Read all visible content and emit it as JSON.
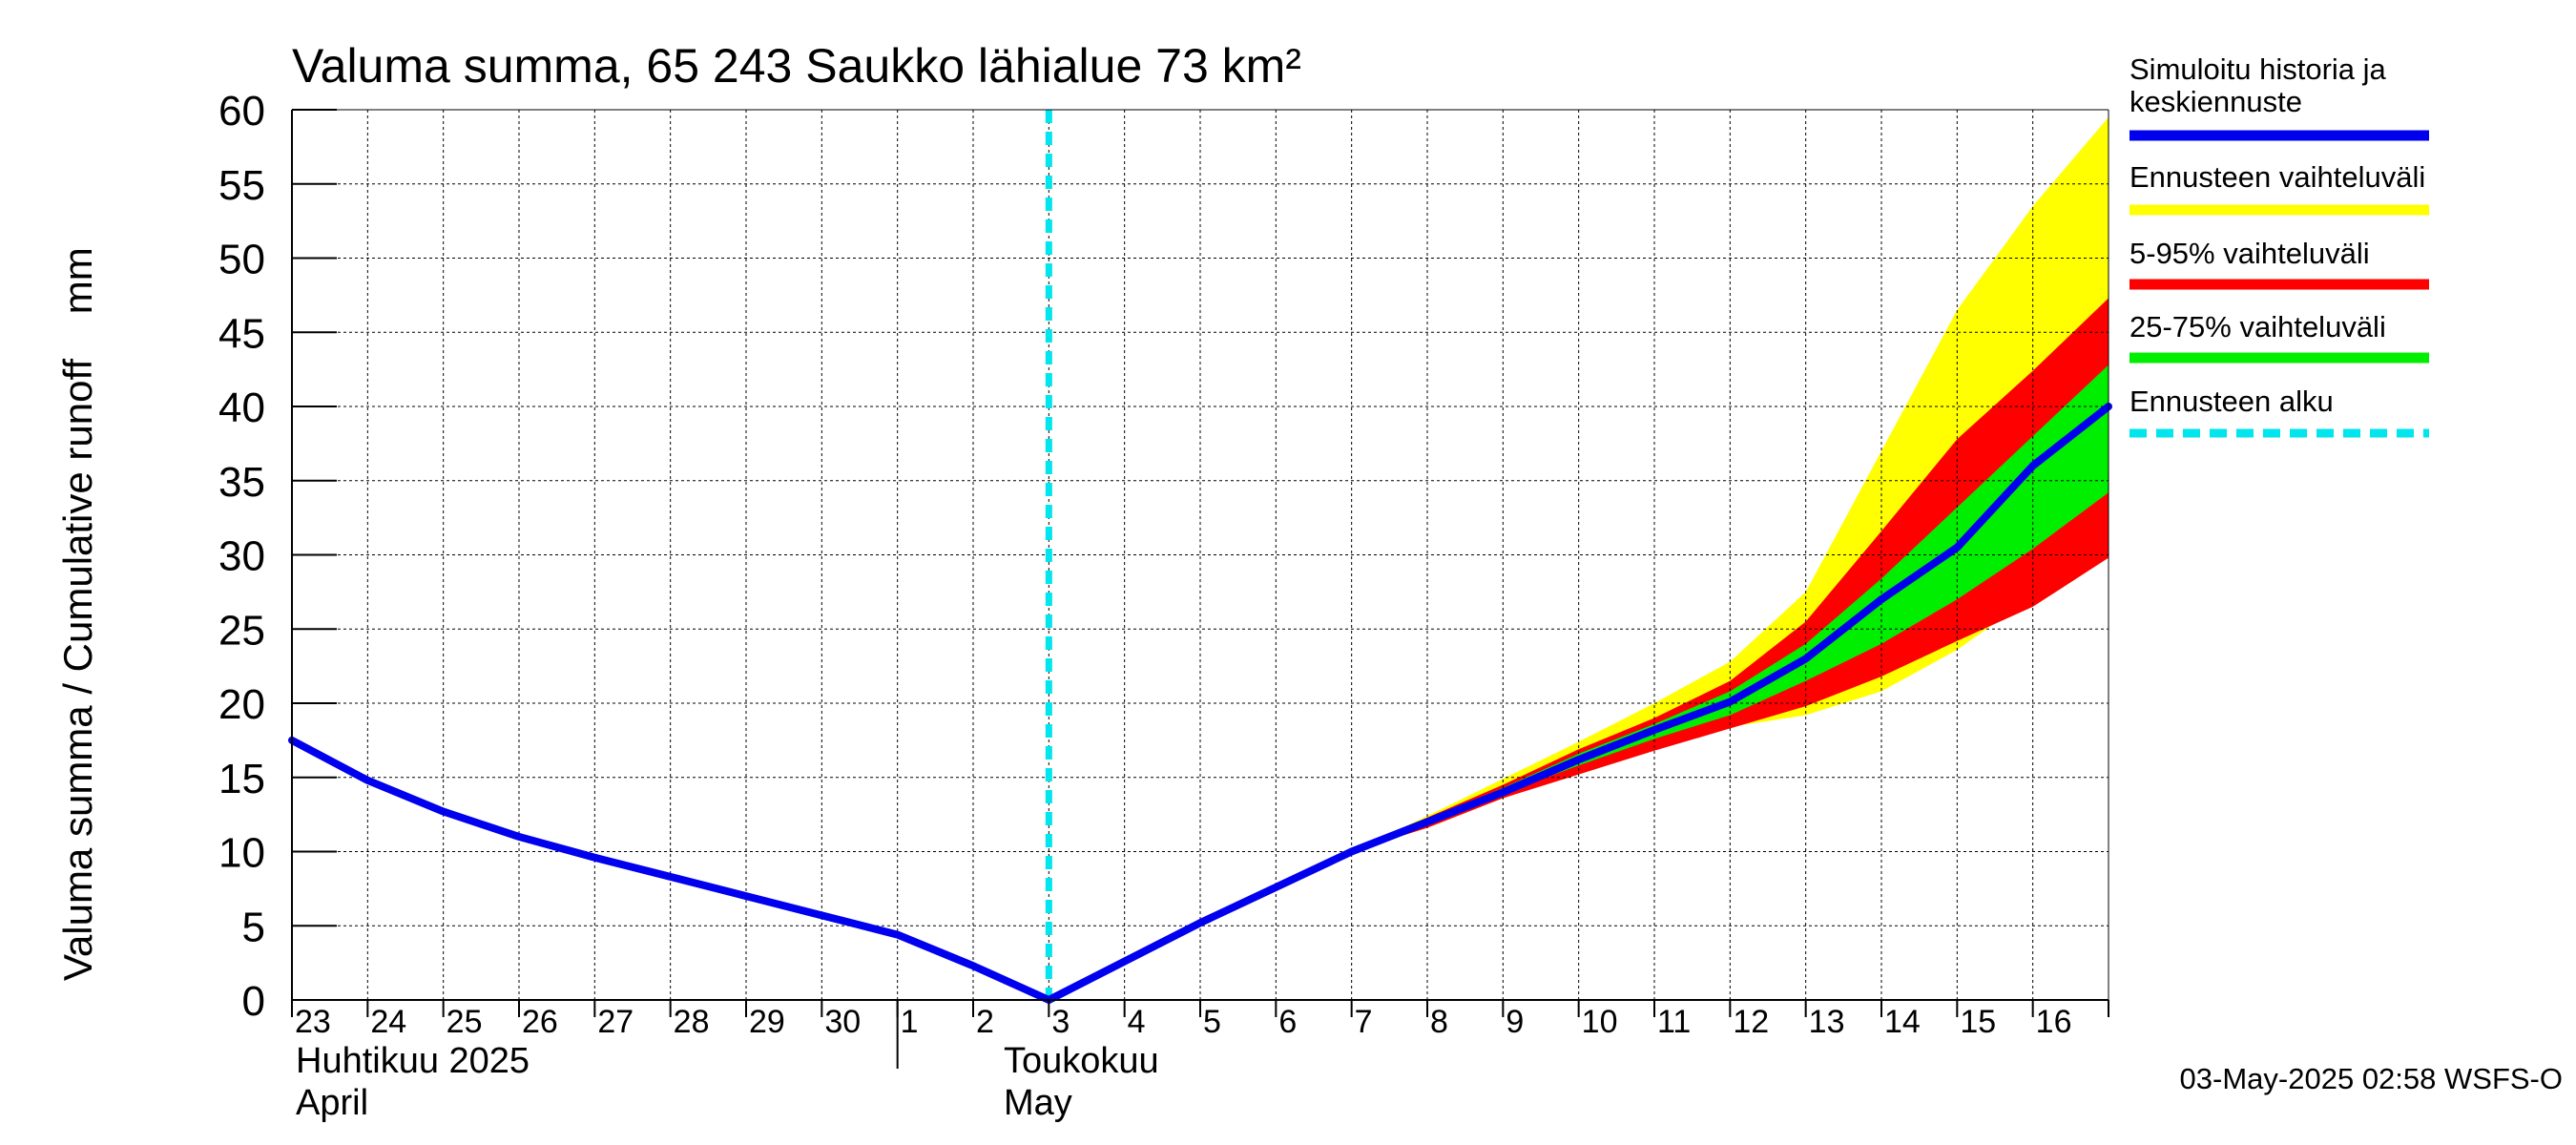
{
  "chart_data": {
    "type": "area",
    "title": "Valuma summa, 65 243 Saukko lähialue 73 km²",
    "ylabel": "Valuma summa / Cumulative runoff    mm",
    "ylim": [
      0,
      60
    ],
    "yticks": [
      0,
      5,
      10,
      15,
      20,
      25,
      30,
      35,
      40,
      45,
      50,
      55,
      60
    ],
    "xlim": [
      0,
      24
    ],
    "x_tick_labels": [
      "23",
      "24",
      "25",
      "26",
      "27",
      "28",
      "29",
      "30",
      "1",
      "2",
      "3",
      "4",
      "5",
      "6",
      "7",
      "8",
      "9",
      "10",
      "11",
      "12",
      "13",
      "14",
      "15",
      "16"
    ],
    "month_labels": [
      {
        "line1": "Huhtikuu  2025",
        "line2": "April"
      },
      {
        "line1": "Toukokuu",
        "line2": "May"
      }
    ],
    "grid": true,
    "forecast_start_x": 10,
    "series": [
      {
        "name": "Simuloitu historia ja keskiennuste",
        "color": "#0000ee",
        "x": [
          0,
          1,
          2,
          3,
          4,
          5,
          6,
          7,
          8,
          9,
          10,
          11,
          12,
          13,
          14,
          15,
          16,
          17,
          18,
          19,
          20,
          21,
          22,
          23,
          24
        ],
        "y": [
          17.5,
          14.8,
          12.7,
          11,
          9.6,
          8.3,
          7,
          5.7,
          4.4,
          2.3,
          0,
          2.6,
          5.2,
          7.6,
          10,
          12,
          14,
          16.2,
          18.2,
          20.1,
          23,
          27,
          30.5,
          36,
          40
        ]
      }
    ],
    "bands": [
      {
        "name": "Ennusteen vaihteluväli",
        "color": "#ffff00",
        "x": [
          14,
          15,
          16,
          17,
          18,
          19,
          20,
          21,
          22,
          23,
          24
        ],
        "lower": [
          10,
          11.6,
          13.6,
          15.4,
          17,
          18.4,
          19.2,
          20.8,
          23.6,
          27.2,
          30.5
        ],
        "upper": [
          10,
          12.4,
          14.9,
          17.4,
          20,
          22.8,
          27.5,
          37,
          46.5,
          53.5,
          59.5
        ]
      },
      {
        "name": "5-95% vaihteluväli",
        "color": "#ff0000",
        "x": [
          14,
          15,
          16,
          17,
          18,
          19,
          20,
          21,
          22,
          23,
          24
        ],
        "lower": [
          10,
          11.6,
          13.6,
          15.2,
          16.8,
          18.3,
          19.8,
          21.8,
          24.2,
          26.5,
          29.8
        ],
        "upper": [
          10,
          12.3,
          14.5,
          16.9,
          19,
          21.5,
          25.5,
          31.6,
          37.8,
          42.4,
          47.3
        ]
      },
      {
        "name": "25-75% vaihteluväli",
        "color": "#00ee00",
        "x": [
          14,
          15,
          16,
          17,
          18,
          19,
          20,
          21,
          22,
          23,
          24
        ],
        "lower": [
          10,
          11.8,
          13.9,
          15.8,
          17.6,
          19.2,
          21.5,
          24,
          27,
          30.4,
          34.2
        ],
        "upper": [
          10,
          12.1,
          14.3,
          16.6,
          18.6,
          20.8,
          24,
          28.4,
          33.2,
          38,
          42.8
        ]
      }
    ],
    "markers": [
      {
        "name": "Ennusteen alku",
        "color": "#00e5ee",
        "x": 10
      }
    ],
    "legend": {
      "placement": "right",
      "entries": [
        {
          "label": "Simuloitu historia ja keskiennuste",
          "lines": [
            "Simuloitu historia ja",
            "keskiennuste"
          ],
          "color": "#0000ee",
          "style": "solid"
        },
        {
          "label": "Ennusteen vaihteluväli",
          "lines": [
            "Ennusteen vaihteluväli"
          ],
          "color": "#ffff00",
          "style": "solid"
        },
        {
          "label": "5-95% vaihteluväli",
          "lines": [
            "5-95% vaihteluväli"
          ],
          "color": "#ff0000",
          "style": "solid"
        },
        {
          "label": "25-75% vaihteluväli",
          "lines": [
            "25-75% vaihteluväli"
          ],
          "color": "#00ee00",
          "style": "solid"
        },
        {
          "label": "Ennusteen alku",
          "lines": [
            "Ennusteen alku"
          ],
          "color": "#00e5ee",
          "style": "dashed"
        }
      ]
    },
    "footer": "03-May-2025 02:58 WSFS-O"
  }
}
